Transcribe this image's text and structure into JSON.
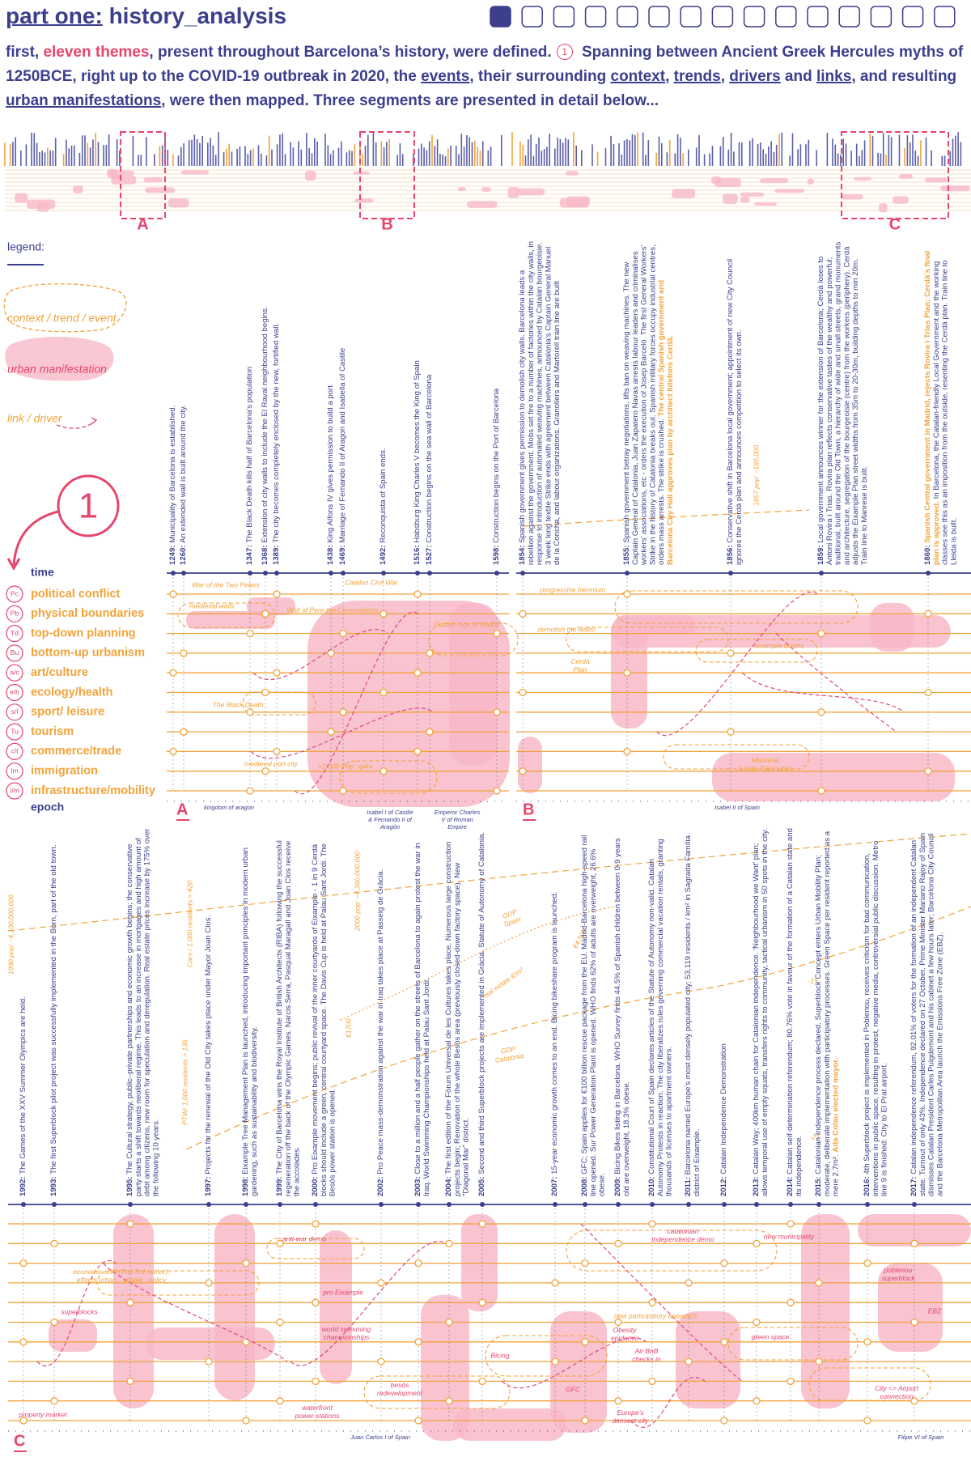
{
  "header": {
    "title_prefix": "part one:",
    "title": "history_analysis"
  },
  "intro": [
    "first, ",
    "eleven themes",
    ", present throughout Barcelona’s history, were defined.",
    "1",
    " Spanning between Ancient Greek Hercules myths of 1250BCE, right up to the COVID-19 outbreak in 2020, the ",
    "events",
    ", their surrounding ",
    "context",
    ", ",
    "trends",
    ", ",
    "drivers",
    " and ",
    "links",
    ", and resulting ",
    "urban manifestations",
    ", were then mapped. Three segments are presented in detail below..."
  ],
  "overview": {
    "labels": [
      "A",
      "B",
      "C"
    ]
  },
  "legend": {
    "title": "legend:",
    "items": [
      "context / trend / event",
      "urban manifestation",
      "link / driver"
    ]
  },
  "marker": "1",
  "themes": {
    "time": "time",
    "epoch": "epoch",
    "rows": [
      {
        "code": "Pc",
        "name": "political conflict"
      },
      {
        "code": "Pb",
        "name": "physical boundaries"
      },
      {
        "code": "Td",
        "name": "top-down planning"
      },
      {
        "code": "Bu",
        "name": "bottom-up urbanism"
      },
      {
        "code": "a/c",
        "name": "art/culture"
      },
      {
        "code": "e/h",
        "name": "ecology/health"
      },
      {
        "code": "s/l",
        "name": "sport/ leisure"
      },
      {
        "code": "Tu",
        "name": "tourism"
      },
      {
        "code": "c/t",
        "name": "commerce/trade"
      },
      {
        "code": "Im",
        "name": "immigration"
      },
      {
        "code": "i/m",
        "name": "infrastructure/mobility"
      }
    ]
  },
  "segments": [
    {
      "label": "A",
      "events": [
        {
          "year": "1249:",
          "text": "Municipality of Barcelona is established."
        },
        {
          "year": "1260:",
          "text": "An extended wall is built around the city."
        },
        {
          "year": "1347:",
          "text": "The Black Death kills half of Barcelona's population"
        },
        {
          "year": "1368:",
          "text": "Extension of city walls to include the El Raval neighbourhood begins."
        },
        {
          "year": "1389:",
          "text": "The city becomes completely enclosed by the new, fortified wall."
        },
        {
          "year": "1438:",
          "text": "King Alfons IV gives permission to build a port"
        },
        {
          "year": "1469:",
          "text": "Marriage of Fernando II of Aragon and Isabella of Castile"
        },
        {
          "year": "1492:",
          "text": "Reconquista of Spain ends."
        },
        {
          "year": "1516:",
          "text": "Habsburg King Charles V becomes the King of Spain"
        },
        {
          "year": "1527:",
          "text": "Construction begins on the sea wall of Barcelona"
        },
        {
          "year": "1598:",
          "text": "Construction begins on the Port of Barcelona"
        }
      ],
      "annotations": [
        "War of the Two Peters",
        "Catalan Civil War",
        "medieval walls",
        "Wall of Pere the Ceremonious",
        "Golden Age of Guilds",
        "The Black Death",
        "medieval port city",
        "+2,000 Pop' spike"
      ],
      "epochs": [
        "kingdom of aragon",
        [
          "Isabel I of Castile",
          "& Fernando II of",
          "Aragón"
        ],
        [
          "Emperor Charles",
          "V of Roman",
          "Empire"
        ]
      ]
    },
    {
      "label": "B",
      "events": [
        {
          "year": "1854:",
          "text": "Spanish government gives permission to demolish city walls. Barcelona leads a rebellion against the government. Mobs set fire to a number of factories within the city walls, in response to introduction of automated weaving machines, announced by Catalan bourgeoisie. 3 week long textile Strike ends with agreement between Catalonia's Captain General Manuel de la Concha, and labour organizations. Granollers and Martorell train line are built"
        },
        {
          "year": "1855:",
          "text": "Spanish government betray negotiations, lifts ban on weaving machines. The new Captain General of Catalonia, Juan Zapatero Navas arrests labour leaders and criminalises workers' associations, etc - orders the execution of Josep Barceló. The first General Workers' Strike in the history of Catalonia breaks out. Spanish military forces occupy industrial centres, orders mass arrests. The strike is crushed.",
          "highlight": "The central Spanish government and Barcelona City Hall approves plan by architect Ildefons Cerdà."
        },
        {
          "year": "1856:",
          "text": "Conservative shift in Barcelona local government; appointment of new City Council ignores the Cerdà plan and announces competition to select its own."
        },
        {
          "year": "1859:",
          "text": "Local government announces winner for the extension of Barcelona; Cerdà loses to Antoni Rovira i Trias. Rovira plan reflects conservative tastes of the wealthy and powerful; traditional, built around the Old Town, a hierarchy of wide and small streets, grand monuments and architecture, segregation of the bourgeoisie (centre) from the workers (periphery). Cerdà adjusts the Eixample Plan street widths from 35m to 20-30m, building depths to min 20m. Train line to Manrese is built."
        },
        {
          "year": "1860:",
          "highlight": "Spanish Central government in Madrid, rejects Rovira i Trias Plan; Cerdà's final plan is approved.",
          "text": "In Barcelona, the Catalan-friendly Local Government and the working classes see this as an imposition from the outside, resenting the Cerdà plan. Train line to Lleida is built."
        }
      ],
      "annotations": [
        "progressive biennium",
        "demolish the walls!",
        "eixample origins",
        [
          "Cerdà",
          "Plan"
        ],
        [
          "Manrese,",
          "Lleida Train Lines"
        ],
        "1857 pop' ~180,000"
      ],
      "epochs": [
        "Isabel II of Spain"
      ]
    },
    {
      "label": "C",
      "events": [
        {
          "year": "1992:",
          "text": "The Games of the XXV Summer Olympics are held."
        },
        {
          "year": "1993:",
          "text": "The first Superblock pilot project was successfully implemented in the Born, part of the old town."
        },
        {
          "year": "1995:",
          "text": "The Cultural strategy, public–private partnerships and economic growth begins; the conservative party starts a shift towards neoliberal regime. This leads to an increase in mortgages and high amount of debt among citizens, new room for speculation and deregulation. Real estate prices increase by 175% over the following 10 years."
        },
        {
          "year": "1997:",
          "text": "Projects for the renewal of the Old City takes place under Mayor Joan Clos."
        },
        {
          "year": "1998:",
          "text": "Eixample Tree Management Plan is launched, introducing important principles in modern urban gardening, such as sustainability and biodiversity."
        },
        {
          "year": "1999:",
          "text": "The City of Barcelona wins the Royal Institute of British Architects (RIBA) following the successful regeneration off the back of the Olympic Games. Narcis Serra, Pasqual Maragall and Joan Clos receive the accolades."
        },
        {
          "year": "2000:",
          "text": "Pro Eixample movement begins; public revival of the inner courtyards of Eixample - 1 in 9 Cerdà blocks should include a green, central courtyard space. The Davis Cup is held at Palau Sant Jordi. The Besòs power station is opened."
        },
        {
          "year": "2002:",
          "text": "Pro Peace mass-demonstration against the war in Iraq takes place at Passeig de Gràcia."
        },
        {
          "year": "2003:",
          "text": "Close to a million and a half people gather on the streets of Barcelona to again protest the war in Iraq. World Swimming Championships held at Palau Sant Jordi."
        },
        {
          "year": "2004:",
          "text": "The first edition of the Fòrum Universal de les Cultures takes place. Numerous large construction projects begin; Renovation of the whole Besòs area (previously closed-down factory space). New \"Diagonal Mar\" district."
        },
        {
          "year": "2005:",
          "text": "Second and third Superblock projects are implemented in Gràcia. Statute of Autonomy of Catalonia."
        },
        {
          "year": "2007:",
          "text": "15-year economic growth comes to an end. Bicing bikeshare program is launched."
        },
        {
          "year": "2008:",
          "text": "GFC; Spain applies for €100 billion rescue package from the EU. Madrid-Barcelona high-speed rail line opened. Sur Power Generation Plant is opened. WHO finds 62% of adults are overweight, 26.6% obese."
        },
        {
          "year": "2009:",
          "text": "Bicing Bikes listing in Barcelona. WHO Survey finds 44.5% of Spanish children between 0-9 years old are overweight, 18.3% obese."
        },
        {
          "year": "2010:",
          "text": "Constitutional Court of Spain declares articles of the Statute of Autonomy non-valid. Catalan Autonomy Protests in reaction. The city liberalizes rules governing commercial vacation rentals, granting thousands of licenses to apartment owners."
        },
        {
          "year": "2011:",
          "text": "Barcelona named Europe's most densely populated city; 53,119 residents / km² in Sagrada Família district of Eixample."
        },
        {
          "year": "2012:",
          "text": "Catalan Independence Demonstration"
        },
        {
          "year": "2013:",
          "text": "Catalan Way; 400km human chain for Catalonian independence. 'Neighbourhood we Want' plan; allows temporal use of empty squats, transfers rights to community, tactical urbanism in 50 spots in the city."
        },
        {
          "year": "2014:",
          "text": "Catalan self-determination referendum; 80.76% vote in favour of the formation of a Catalan state and its independence."
        },
        {
          "year": "2015:",
          "text": "Catalonian Independence process declared. Superblock Concept enters Urban Mobility Plan; moderate, deliberate implementation with participatory processes. Green Space per resident reported as a mere 2.7m².",
          "highlight": "Ada Colau elected mayor."
        },
        {
          "year": "2016:",
          "text": "4th Superblock project is implemented in Poblenou, receives criticism for bad communication, interventions in public space, resulting in protest, negative media, controversial public discussion. Metro line 9 is finished: City to El Prat airport."
        },
        {
          "year": "2017:",
          "text": "Catalan independence referendum, 92.01% of voters for the formation of an independent Catalan state. Turnout of only 43%. Independence declared on 27 October. Prime Minister Mariano Rajoy of Spain dismisses Catalan President Carles Puigdemont and his cabinet a few hours later; Barcelona City Council and the Barcelona Metropolitan Area launch the Emissions Free Zone (EBZ)."
        }
      ],
      "annotations": [
        "1990 pop' ~4,100,000,000",
        "PTW/ 1,000 residents = 135",
        "Cars / 1,000 residents = 420",
        "2000 pop' ~4,360,000,000",
        "€1700",
        [
          "GDP",
          "Spain"
        ],
        "€4,500",
        "real estate €/m²",
        [
          "GDP",
          "Catalonia"
        ],
        "-15",
        "-21",
        "anti-war demo",
        [
          "economic shift (2nd-3rd sector);",
          "effects urban - spatial - policy"
        ],
        "pro Eixample",
        "superblocks",
        [
          "world swimming",
          "championships"
        ],
        "property market",
        [
          "besòs",
          "redevelopment"
        ],
        [
          "waterfront",
          "power stations"
        ],
        "Bicing",
        "GFC",
        [
          "Obesity",
          "epidemic"
        ],
        [
          "Air BnB",
          "checks in"
        ],
        [
          "Europe's",
          "densest city"
        ],
        [
          "catalonian",
          "independence demo"
        ],
        "new municipality",
        [
          "poblenou",
          "superblock"
        ],
        "new participatory approach",
        "green space",
        "EBZ",
        [
          "City <> Airport",
          "connection"
        ]
      ],
      "epochs": [
        "Juan Carlos I of Spain",
        "Filipe VI of Spain"
      ]
    }
  ]
}
